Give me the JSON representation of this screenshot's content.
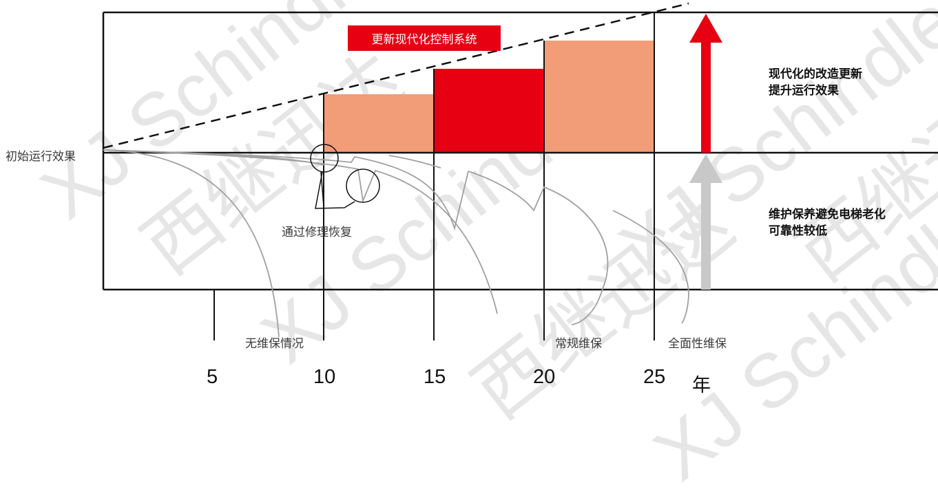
{
  "banner": {
    "label": "更新现代化控制系统",
    "color": "#e60012"
  },
  "left_label": "初始运行效果",
  "right_labels": {
    "modernization": [
      "现代化的改造更新",
      "提升运行效果"
    ],
    "maintenance": [
      "维护保养避免电梯老化",
      "可靠性较低"
    ]
  },
  "repair_label": "通过修理恢复",
  "curve_labels": {
    "none": "无维保情况",
    "regular": "常规维保",
    "full": "全面性维保"
  },
  "x_axis": {
    "ticks": [
      "5",
      "10",
      "15",
      "20",
      "25"
    ],
    "unit": "年"
  },
  "watermark": {
    "text_latin": "XJ Schindler",
    "text_cn": "西继迅达"
  },
  "colors": {
    "accent_red": "#e60012",
    "salmon": "#f29c78",
    "gray_arrow": "#c8c8c8",
    "curve_gray": "#a0a0a0"
  },
  "chart_data": {
    "type": "bar",
    "categories": [
      "10-15",
      "15-20",
      "20-25"
    ],
    "values": [
      85,
      125,
      165
    ],
    "xlabel": "年"
  }
}
